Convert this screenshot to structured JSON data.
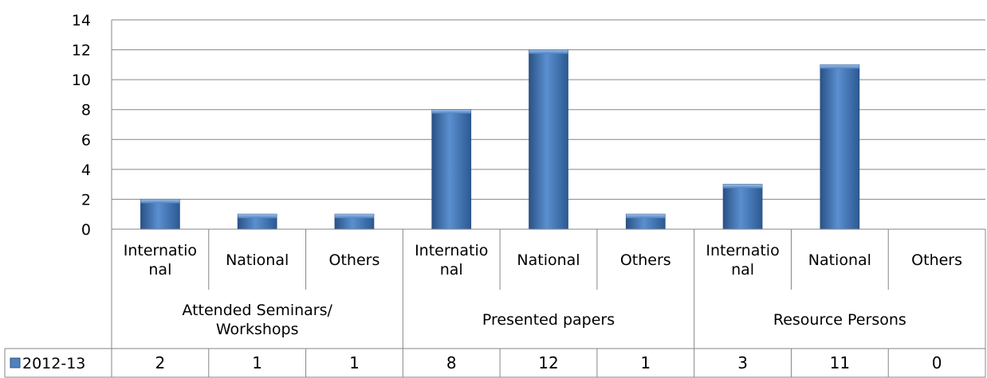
{
  "chart_data": {
    "type": "bar",
    "title": "",
    "xlabel": "",
    "ylabel": "",
    "ylim": [
      0,
      14
    ],
    "yticks": [
      0,
      2,
      4,
      6,
      8,
      10,
      12,
      14
    ],
    "grid": true,
    "legend": "data-table-left",
    "groups": [
      {
        "label_lines": [
          "Attended Seminars/",
          "Workshops"
        ]
      },
      {
        "label_lines": [
          "Presented papers"
        ]
      },
      {
        "label_lines": [
          "Resource Persons"
        ]
      }
    ],
    "categories": [
      {
        "lines": [
          "Internatio",
          "nal"
        ]
      },
      {
        "lines": [
          "National"
        ]
      },
      {
        "lines": [
          "Others"
        ]
      },
      {
        "lines": [
          "Internatio",
          "nal"
        ]
      },
      {
        "lines": [
          "National"
        ]
      },
      {
        "lines": [
          "Others"
        ]
      },
      {
        "lines": [
          "Internatio",
          "nal"
        ]
      },
      {
        "lines": [
          "National"
        ]
      },
      {
        "lines": [
          "Others"
        ]
      }
    ],
    "series": [
      {
        "name": "2012-13",
        "color": "#4F81BD",
        "values": [
          2,
          1,
          1,
          8,
          12,
          1,
          3,
          11,
          0
        ]
      }
    ]
  }
}
